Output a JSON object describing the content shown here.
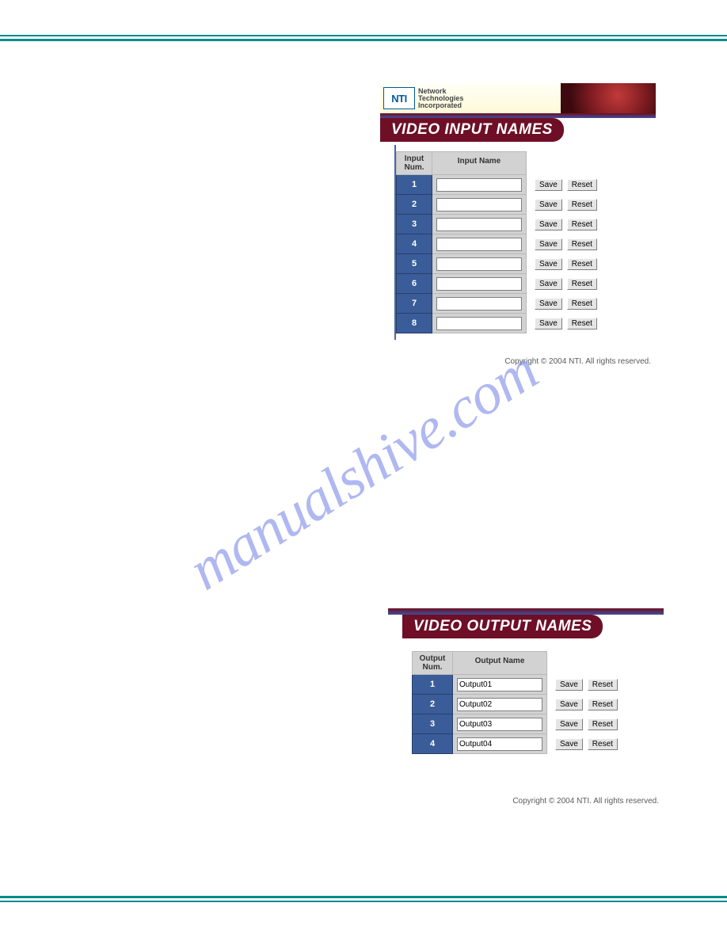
{
  "hr_color": "#008b8b",
  "accent_dark_red": "#6e0f27",
  "accent_cell_blue": "#3a5c99",
  "grey_bg": "#d2d2d2",
  "watermark_text": "manualshive.com",
  "nti": {
    "logo": "NTI",
    "line1": "Network",
    "line2": "Technologies",
    "line3": "Incorporated"
  },
  "input_panel": {
    "title": "VIDEO INPUT NAMES",
    "col_num_hdr_l1": "Input",
    "col_num_hdr_l2": "Num.",
    "col_name_hdr": "Input Name",
    "save_label": "Save",
    "reset_label": "Reset",
    "rows": [
      {
        "num": "1",
        "value": ""
      },
      {
        "num": "2",
        "value": ""
      },
      {
        "num": "3",
        "value": ""
      },
      {
        "num": "4",
        "value": ""
      },
      {
        "num": "5",
        "value": ""
      },
      {
        "num": "6",
        "value": ""
      },
      {
        "num": "7",
        "value": ""
      },
      {
        "num": "8",
        "value": ""
      }
    ],
    "copyright": "Copyright © 2004 NTI. All rights reserved."
  },
  "output_panel": {
    "title": "VIDEO OUTPUT NAMES",
    "col_num_hdr_l1": "Output",
    "col_num_hdr_l2": "Num.",
    "col_name_hdr": "Output Name",
    "save_label": "Save",
    "reset_label": "Reset",
    "rows": [
      {
        "num": "1",
        "value": "Output01"
      },
      {
        "num": "2",
        "value": "Output02"
      },
      {
        "num": "3",
        "value": "Output03"
      },
      {
        "num": "4",
        "value": "Output04"
      }
    ],
    "copyright": "Copyright © 2004 NTI. All rights reserved."
  }
}
